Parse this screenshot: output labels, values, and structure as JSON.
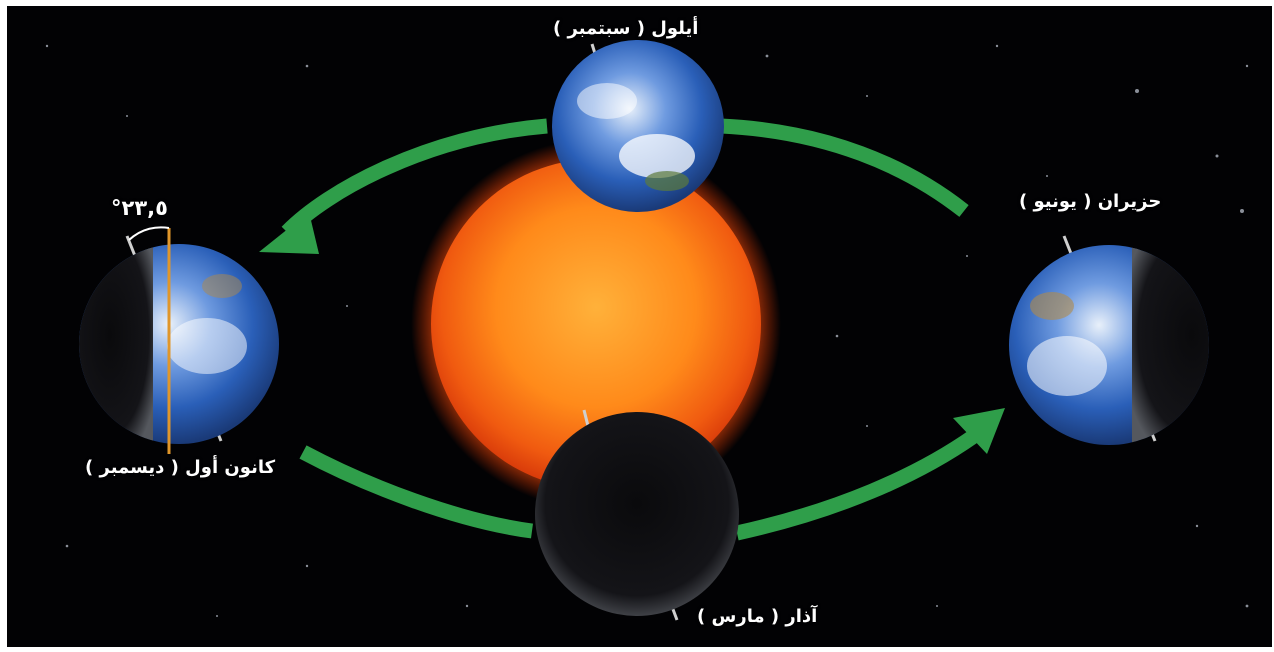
{
  "diagram": {
    "labels": {
      "september": "أيلول ( سبتمبر )",
      "june": "حزيران ( يونيو )",
      "december": "كانون أول ( ديسمبر )",
      "march": "آذار ( مارس )",
      "tilt_angle": "°٢٣,٥"
    },
    "colors": {
      "background": "#020204",
      "sun": "#ff8a1a",
      "orbit_arrow": "#2f9e4a",
      "ocean": "#2a5fb8",
      "axis_marker": "#e0962a"
    }
  }
}
